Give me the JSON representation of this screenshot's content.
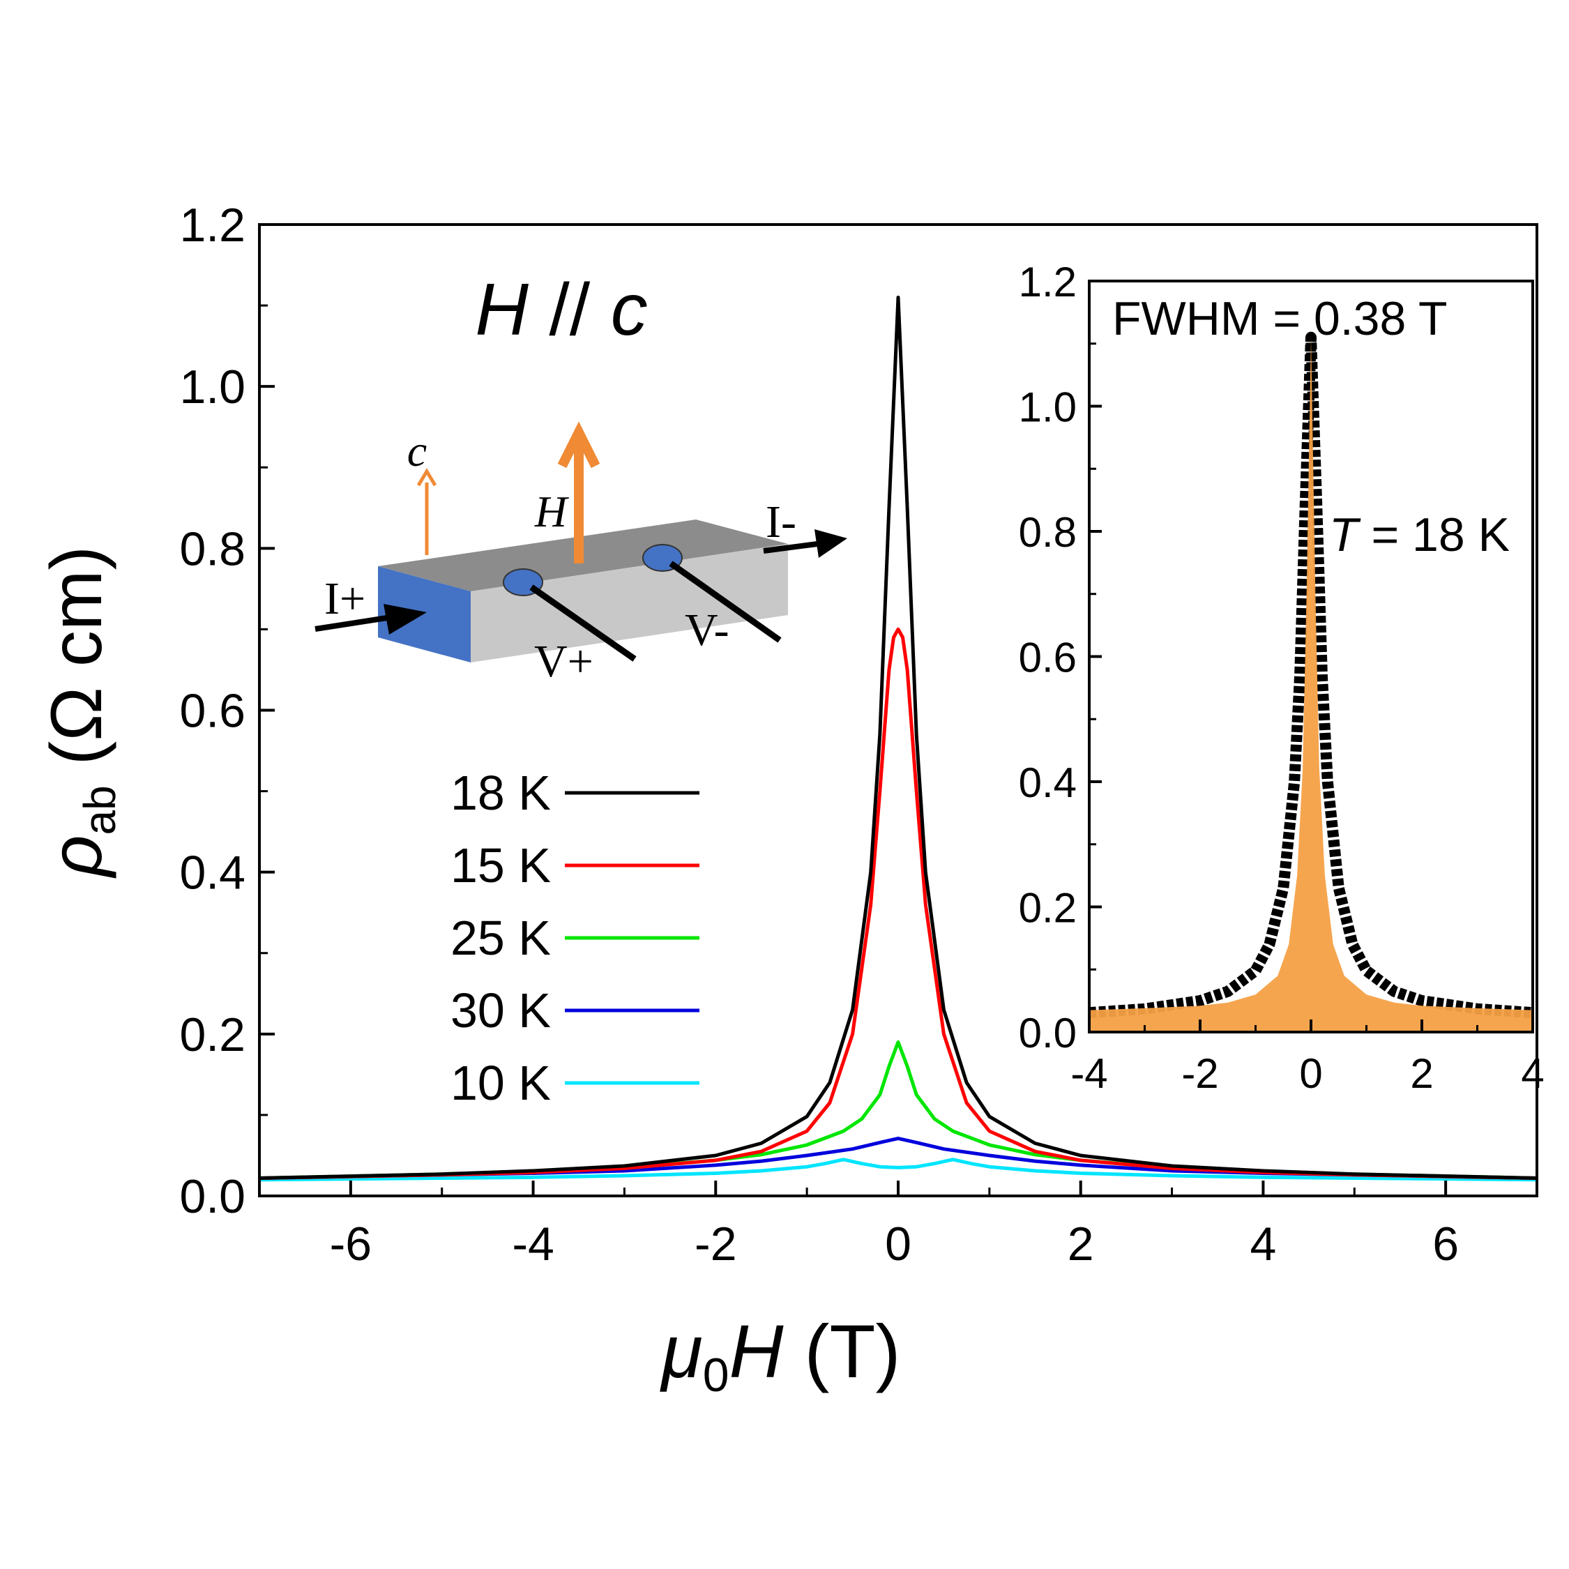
{
  "chart_data": [
    {
      "type": "line",
      "title": "",
      "xlabel": "μ0H (T)",
      "xlabel_parts": {
        "main": "μ",
        "sub": "0",
        "tail": "H",
        "unit": " (T)"
      },
      "ylabel": "ρab (Ω cm)",
      "ylabel_parts": {
        "main": "ρ",
        "sub": "ab",
        "unit": " (Ω cm)"
      },
      "xlim": [
        -7,
        7
      ],
      "ylim": [
        0,
        1.2
      ],
      "x_ticks": [
        -6,
        -4,
        -2,
        0,
        2,
        4,
        6
      ],
      "y_ticks": [
        0.0,
        0.2,
        0.4,
        0.6,
        0.8,
        1.0,
        1.2
      ],
      "x_tick_labels": [
        "-6",
        "-4",
        "-2",
        "0",
        "2",
        "4",
        "6"
      ],
      "y_tick_labels": [
        "0.0",
        "0.2",
        "0.4",
        "0.6",
        "0.8",
        "1.0",
        "1.2"
      ],
      "legend_placement": "center-left",
      "annotation": {
        "main": "H",
        "sep": " // ",
        "tail": "c"
      },
      "series": [
        {
          "name": "18 K",
          "color": "#000000",
          "x": [
            -7,
            -5,
            -4,
            -3,
            -2,
            -1.5,
            -1,
            -0.75,
            -0.5,
            -0.3,
            -0.2,
            -0.1,
            0,
            0.1,
            0.2,
            0.3,
            0.5,
            0.75,
            1,
            1.5,
            2,
            3,
            4,
            5,
            7
          ],
          "y": [
            0.022,
            0.027,
            0.031,
            0.037,
            0.05,
            0.065,
            0.098,
            0.14,
            0.23,
            0.4,
            0.57,
            0.85,
            1.11,
            0.85,
            0.57,
            0.4,
            0.23,
            0.14,
            0.098,
            0.065,
            0.05,
            0.037,
            0.031,
            0.027,
            0.022
          ]
        },
        {
          "name": "15 K",
          "color": "#ff0000",
          "x": [
            -7,
            -5,
            -4,
            -3,
            -2,
            -1.5,
            -1,
            -0.75,
            -0.5,
            -0.3,
            -0.2,
            -0.1,
            -0.05,
            0,
            0.05,
            0.1,
            0.2,
            0.3,
            0.5,
            0.75,
            1,
            1.5,
            2,
            3,
            4,
            5,
            7
          ],
          "y": [
            0.022,
            0.026,
            0.029,
            0.034,
            0.044,
            0.055,
            0.08,
            0.115,
            0.2,
            0.36,
            0.5,
            0.65,
            0.69,
            0.7,
            0.69,
            0.65,
            0.5,
            0.36,
            0.2,
            0.115,
            0.08,
            0.055,
            0.044,
            0.034,
            0.029,
            0.026,
            0.022
          ]
        },
        {
          "name": "25 K",
          "color": "#00e600",
          "x": [
            -7,
            -5,
            -4,
            -3,
            -2,
            -1.5,
            -1,
            -0.6,
            -0.4,
            -0.2,
            -0.1,
            0,
            0.1,
            0.2,
            0.4,
            0.6,
            1,
            1.5,
            2,
            3,
            4,
            5,
            7
          ],
          "y": [
            0.022,
            0.027,
            0.03,
            0.035,
            0.044,
            0.051,
            0.063,
            0.08,
            0.095,
            0.125,
            0.16,
            0.19,
            0.16,
            0.125,
            0.095,
            0.08,
            0.063,
            0.051,
            0.044,
            0.035,
            0.03,
            0.027,
            0.022
          ]
        },
        {
          "name": "30 K",
          "color": "#0000dd",
          "x": [
            -7,
            -5,
            -4,
            -3,
            -2,
            -1.5,
            -1,
            -0.5,
            -0.2,
            0,
            0.2,
            0.5,
            1,
            1.5,
            2,
            3,
            4,
            5,
            7
          ],
          "y": [
            0.022,
            0.026,
            0.028,
            0.031,
            0.038,
            0.043,
            0.05,
            0.058,
            0.066,
            0.071,
            0.066,
            0.058,
            0.05,
            0.043,
            0.038,
            0.031,
            0.028,
            0.026,
            0.022
          ]
        },
        {
          "name": "10 K",
          "color": "#00e5ff",
          "x": [
            -7,
            -5,
            -4,
            -3,
            -2,
            -1.5,
            -1,
            -0.8,
            -0.6,
            -0.4,
            -0.2,
            0,
            0.2,
            0.4,
            0.6,
            0.8,
            1,
            1.5,
            2,
            3,
            4,
            5,
            7
          ],
          "y": [
            0.02,
            0.022,
            0.023,
            0.025,
            0.028,
            0.031,
            0.036,
            0.04,
            0.045,
            0.04,
            0.036,
            0.035,
            0.036,
            0.04,
            0.045,
            0.04,
            0.036,
            0.031,
            0.028,
            0.025,
            0.023,
            0.022,
            0.02
          ]
        }
      ],
      "schematic": {
        "c_label": "c",
        "h_label": "H",
        "i_plus": "I+",
        "i_minus": "I-",
        "v_plus": "V+",
        "v_minus": "V-",
        "arrow_color": "#f08a35",
        "sample_top": "#8c8c8c",
        "sample_side": "#c8c8c8",
        "contact_color": "#4472c4"
      }
    },
    {
      "type": "area",
      "title": "",
      "xlim": [
        -4,
        4
      ],
      "ylim": [
        0,
        1.2
      ],
      "x_ticks": [
        -4,
        -2,
        0,
        2,
        4
      ],
      "y_ticks": [
        0.0,
        0.2,
        0.4,
        0.6,
        0.8,
        1.0,
        1.2
      ],
      "x_tick_labels": [
        "-4",
        "-2",
        "0",
        "2",
        "4"
      ],
      "y_tick_labels": [
        "0.0",
        "0.2",
        "0.4",
        "0.6",
        "0.8",
        "1.0",
        "1.2"
      ],
      "annotations": {
        "fwhm_label": "FWHM = 0.38 T",
        "t_italic": "T",
        "t_rest": " = 18 K"
      },
      "series": [
        {
          "name": "",
          "style": "markers",
          "color": "#000000",
          "x": [
            -4,
            -3,
            -2,
            -1.5,
            -1,
            -0.75,
            -0.5,
            -0.3,
            -0.2,
            -0.1,
            0,
            0.1,
            0.2,
            0.3,
            0.5,
            0.75,
            1,
            1.5,
            2,
            3,
            4
          ],
          "y": [
            0.031,
            0.037,
            0.05,
            0.065,
            0.098,
            0.14,
            0.23,
            0.4,
            0.57,
            0.85,
            1.11,
            0.85,
            0.57,
            0.4,
            0.23,
            0.14,
            0.098,
            0.065,
            0.05,
            0.037,
            0.031
          ]
        },
        {
          "name": "",
          "style": "fill",
          "color": "#f5a046",
          "x": [
            -4,
            -3,
            -2,
            -1.5,
            -1,
            -0.6,
            -0.4,
            -0.25,
            -0.15,
            -0.08,
            0,
            0.08,
            0.15,
            0.25,
            0.4,
            0.6,
            1,
            1.5,
            2,
            3,
            4
          ],
          "y": [
            0.035,
            0.038,
            0.042,
            0.047,
            0.06,
            0.09,
            0.14,
            0.25,
            0.42,
            0.7,
            1.11,
            0.7,
            0.42,
            0.25,
            0.14,
            0.09,
            0.06,
            0.047,
            0.042,
            0.038,
            0.035
          ]
        }
      ]
    }
  ]
}
